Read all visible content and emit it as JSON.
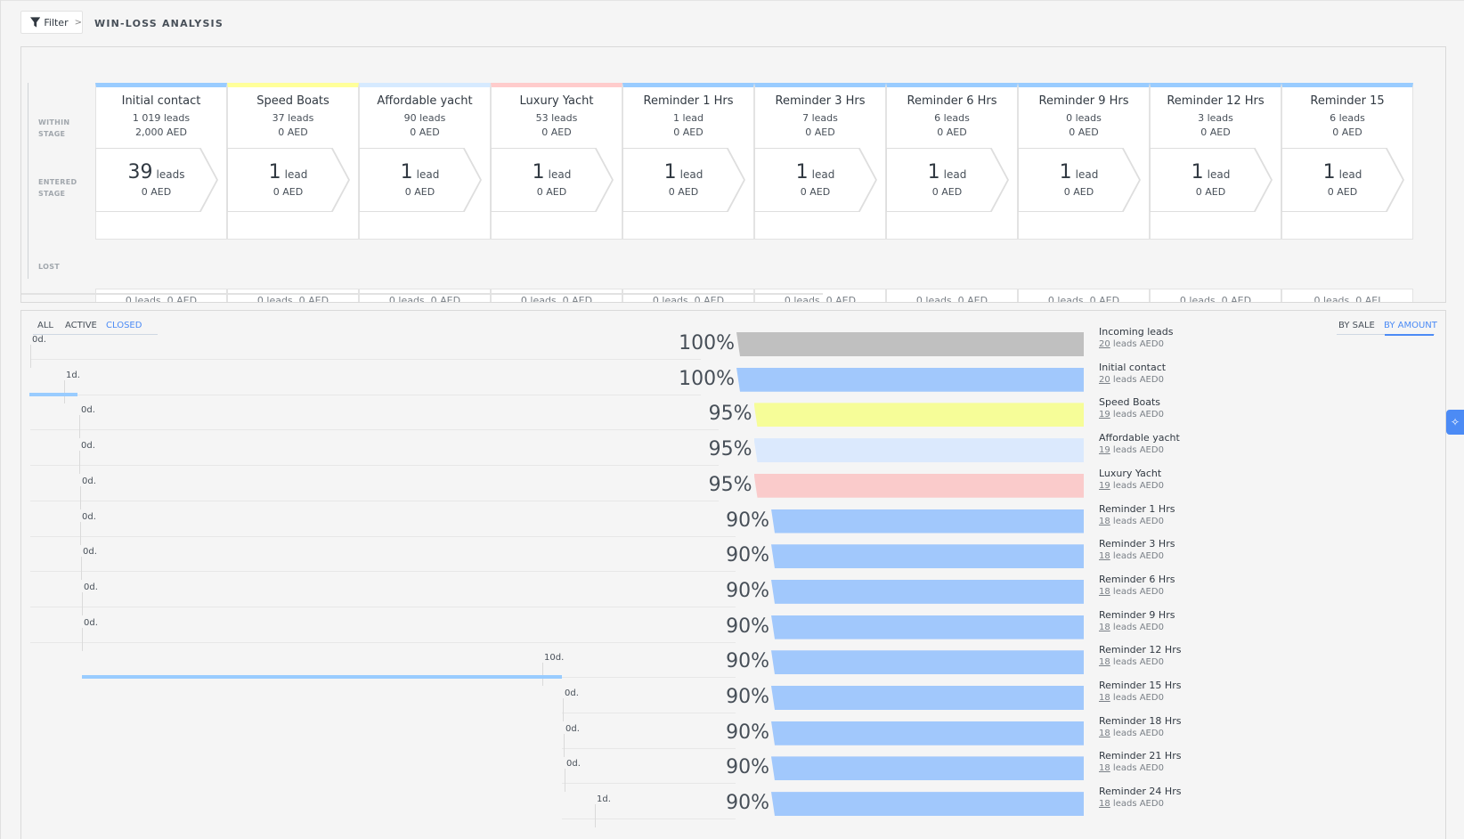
{
  "header": {
    "filter_label": "Filter",
    "filter_chevron": ">",
    "title": "WIN-LOSS ANALYSIS"
  },
  "pipeline": {
    "row_labels": {
      "within": "WITHIN\nSTAGE",
      "entered": "ENTERED\nSTAGE",
      "lost": "LOST"
    },
    "stages": [
      {
        "name": "Initial contact",
        "color": "#99ccff",
        "leads": "1 019 leads",
        "amount": "2,000 AED",
        "entered_count": "39",
        "entered_unit": "leads",
        "entered_amount": "0 AED",
        "lost": "0 leads, 0 AED"
      },
      {
        "name": "Speed Boats",
        "color": "#ffff99",
        "leads": "37 leads",
        "amount": "0 AED",
        "entered_count": "1",
        "entered_unit": "lead",
        "entered_amount": "0 AED",
        "lost": "0 leads, 0 AED"
      },
      {
        "name": "Affordable yacht",
        "color": "#d6eaff",
        "leads": "90 leads",
        "amount": "0 AED",
        "entered_count": "1",
        "entered_unit": "lead",
        "entered_amount": "0 AED",
        "lost": "0 leads, 0 AED"
      },
      {
        "name": "Luxury Yacht",
        "color": "#ffcccc",
        "leads": "53 leads",
        "amount": "0 AED",
        "entered_count": "1",
        "entered_unit": "lead",
        "entered_amount": "0 AED",
        "lost": "0 leads, 0 AED"
      },
      {
        "name": "Reminder 1 Hrs",
        "color": "#99ccff",
        "leads": "1 lead",
        "amount": "0 AED",
        "entered_count": "1",
        "entered_unit": "lead",
        "entered_amount": "0 AED",
        "lost": "0 leads, 0 AED"
      },
      {
        "name": "Reminder 3 Hrs",
        "color": "#99ccff",
        "leads": "7 leads",
        "amount": "0 AED",
        "entered_count": "1",
        "entered_unit": "lead",
        "entered_amount": "0 AED",
        "lost": "0 leads, 0 AED"
      },
      {
        "name": "Reminder 6 Hrs",
        "color": "#99ccff",
        "leads": "6 leads",
        "amount": "0 AED",
        "entered_count": "1",
        "entered_unit": "lead",
        "entered_amount": "0 AED",
        "lost": "0 leads, 0 AED"
      },
      {
        "name": "Reminder 9 Hrs",
        "color": "#99ccff",
        "leads": "0 leads",
        "amount": "0 AED",
        "entered_count": "1",
        "entered_unit": "lead",
        "entered_amount": "0 AED",
        "lost": "0 leads, 0 AED"
      },
      {
        "name": "Reminder 12 Hrs",
        "color": "#99ccff",
        "leads": "3 leads",
        "amount": "0 AED",
        "entered_count": "1",
        "entered_unit": "lead",
        "entered_amount": "0 AED",
        "lost": "0 leads, 0 AED"
      },
      {
        "name": "Reminder 15",
        "color": "#99ccff",
        "leads": "6 leads",
        "amount": "0 AED",
        "entered_count": "1",
        "entered_unit": "lead",
        "entered_amount": "0 AED",
        "lost": "0 leads, 0 AEI"
      }
    ]
  },
  "funnel": {
    "tabs": [
      {
        "label": "ALL",
        "active": false
      },
      {
        "label": "ACTIVE",
        "active": false
      },
      {
        "label": "CLOSED",
        "active": true
      }
    ],
    "sort": [
      {
        "label": "BY SALE",
        "active": false
      },
      {
        "label": "BY AMOUNT",
        "active": true
      }
    ],
    "rows": [
      {
        "duration": "0d.",
        "percent": "100%",
        "pct_value": 100,
        "color": "#c0c0c0",
        "name": "Incoming leads",
        "count": "20",
        "suffix": " leads AED0"
      },
      {
        "duration": "1d.",
        "percent": "100%",
        "pct_value": 100,
        "color": "#a1c8fc",
        "name": "Initial contact",
        "count": "20",
        "suffix": " leads AED0"
      },
      {
        "duration": "0d.",
        "percent": "95%",
        "pct_value": 95,
        "color": "#f6fd98",
        "name": "Speed Boats",
        "count": "19",
        "suffix": " leads AED0"
      },
      {
        "duration": "0d.",
        "percent": "95%",
        "pct_value": 95,
        "color": "#dbe9fd",
        "name": "Affordable yacht",
        "count": "19",
        "suffix": " leads AED0"
      },
      {
        "duration": "0d.",
        "percent": "95%",
        "pct_value": 95,
        "color": "#facbcb",
        "name": "Luxury Yacht",
        "count": "19",
        "suffix": " leads AED0"
      },
      {
        "duration": "0d.",
        "percent": "90%",
        "pct_value": 90,
        "color": "#a1c8fc",
        "name": "Reminder 1 Hrs",
        "count": "18",
        "suffix": " leads AED0"
      },
      {
        "duration": "0d.",
        "percent": "90%",
        "pct_value": 90,
        "color": "#a1c8fc",
        "name": "Reminder 3 Hrs",
        "count": "18",
        "suffix": " leads AED0"
      },
      {
        "duration": "0d.",
        "percent": "90%",
        "pct_value": 90,
        "color": "#a1c8fc",
        "name": "Reminder 6 Hrs",
        "count": "18",
        "suffix": " leads AED0"
      },
      {
        "duration": "0d.",
        "percent": "90%",
        "pct_value": 90,
        "color": "#a1c8fc",
        "name": "Reminder 9 Hrs",
        "count": "18",
        "suffix": " leads AED0"
      },
      {
        "duration": "10d.",
        "percent": "90%",
        "pct_value": 90,
        "color": "#a1c8fc",
        "name": "Reminder 12 Hrs",
        "count": "18",
        "suffix": " leads AED0"
      },
      {
        "duration": "0d.",
        "percent": "90%",
        "pct_value": 90,
        "color": "#a1c8fc",
        "name": "Reminder 15 Hrs",
        "count": "18",
        "suffix": " leads AED0"
      },
      {
        "duration": "0d.",
        "percent": "90%",
        "pct_value": 90,
        "color": "#a1c8fc",
        "name": "Reminder 18 Hrs",
        "count": "18",
        "suffix": " leads AED0"
      },
      {
        "duration": "0d.",
        "percent": "90%",
        "pct_value": 90,
        "color": "#a1c8fc",
        "name": "Reminder 21 Hrs",
        "count": "18",
        "suffix": " leads AED0"
      },
      {
        "duration": "1d.",
        "percent": "90%",
        "pct_value": 90,
        "color": "#a1c8fc",
        "name": "Reminder 24 Hrs",
        "count": "18",
        "suffix": " leads AED0"
      }
    ]
  },
  "side_handle_icon": "sparkle-icon"
}
